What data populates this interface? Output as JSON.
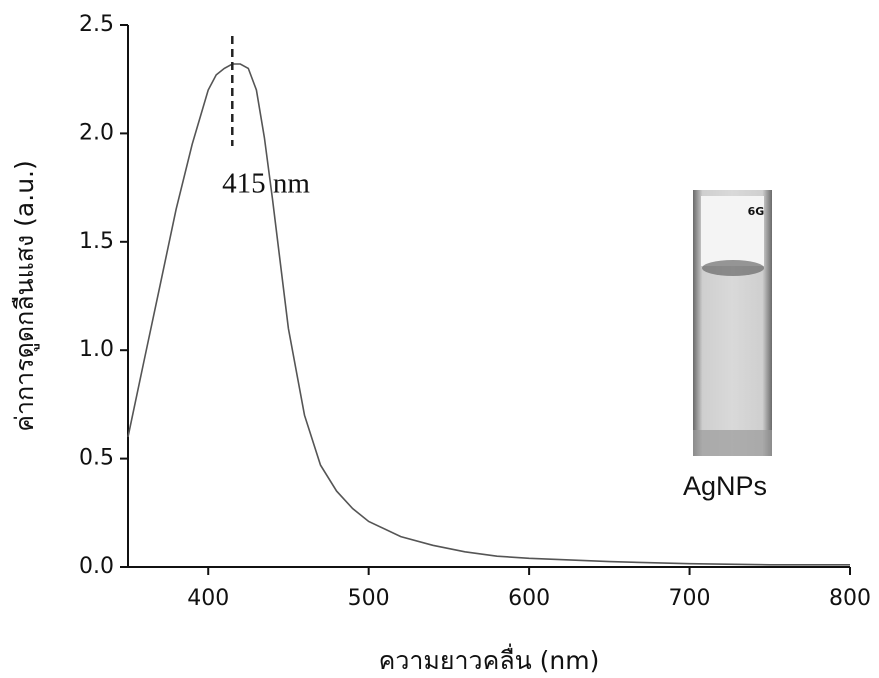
{
  "chart_data": {
    "type": "line",
    "x_label": "ความยาวคลื่น (nm)",
    "y_label": "ค่าการดูดกลืนแสง (a.u.)",
    "x": [
      350,
      360,
      370,
      380,
      390,
      400,
      405,
      410,
      415,
      420,
      425,
      430,
      435,
      440,
      445,
      450,
      460,
      470,
      480,
      490,
      500,
      520,
      540,
      560,
      580,
      600,
      650,
      700,
      750,
      800
    ],
    "values": [
      0.6,
      0.95,
      1.3,
      1.65,
      1.95,
      2.2,
      2.27,
      2.3,
      2.32,
      2.32,
      2.3,
      2.2,
      1.98,
      1.7,
      1.4,
      1.1,
      0.7,
      0.47,
      0.35,
      0.27,
      0.21,
      0.14,
      0.1,
      0.07,
      0.05,
      0.04,
      0.025,
      0.015,
      0.01,
      0.01
    ],
    "color": "#555555",
    "xlim": [
      350,
      800
    ],
    "xticks": [
      400,
      500,
      600,
      700,
      800
    ],
    "ylim": [
      0,
      2.5
    ],
    "yticks": [
      {
        "value": 0,
        "label": "0.0"
      },
      0.5,
      {
        "value": 1,
        "label": "1.0"
      },
      1.5,
      {
        "value": 2,
        "label": "2.0"
      },
      2.5
    ],
    "peak": {
      "x": 415,
      "label": "415 nm"
    },
    "inset": {
      "cuvette_label": "6G",
      "caption": "AgNPs"
    }
  }
}
